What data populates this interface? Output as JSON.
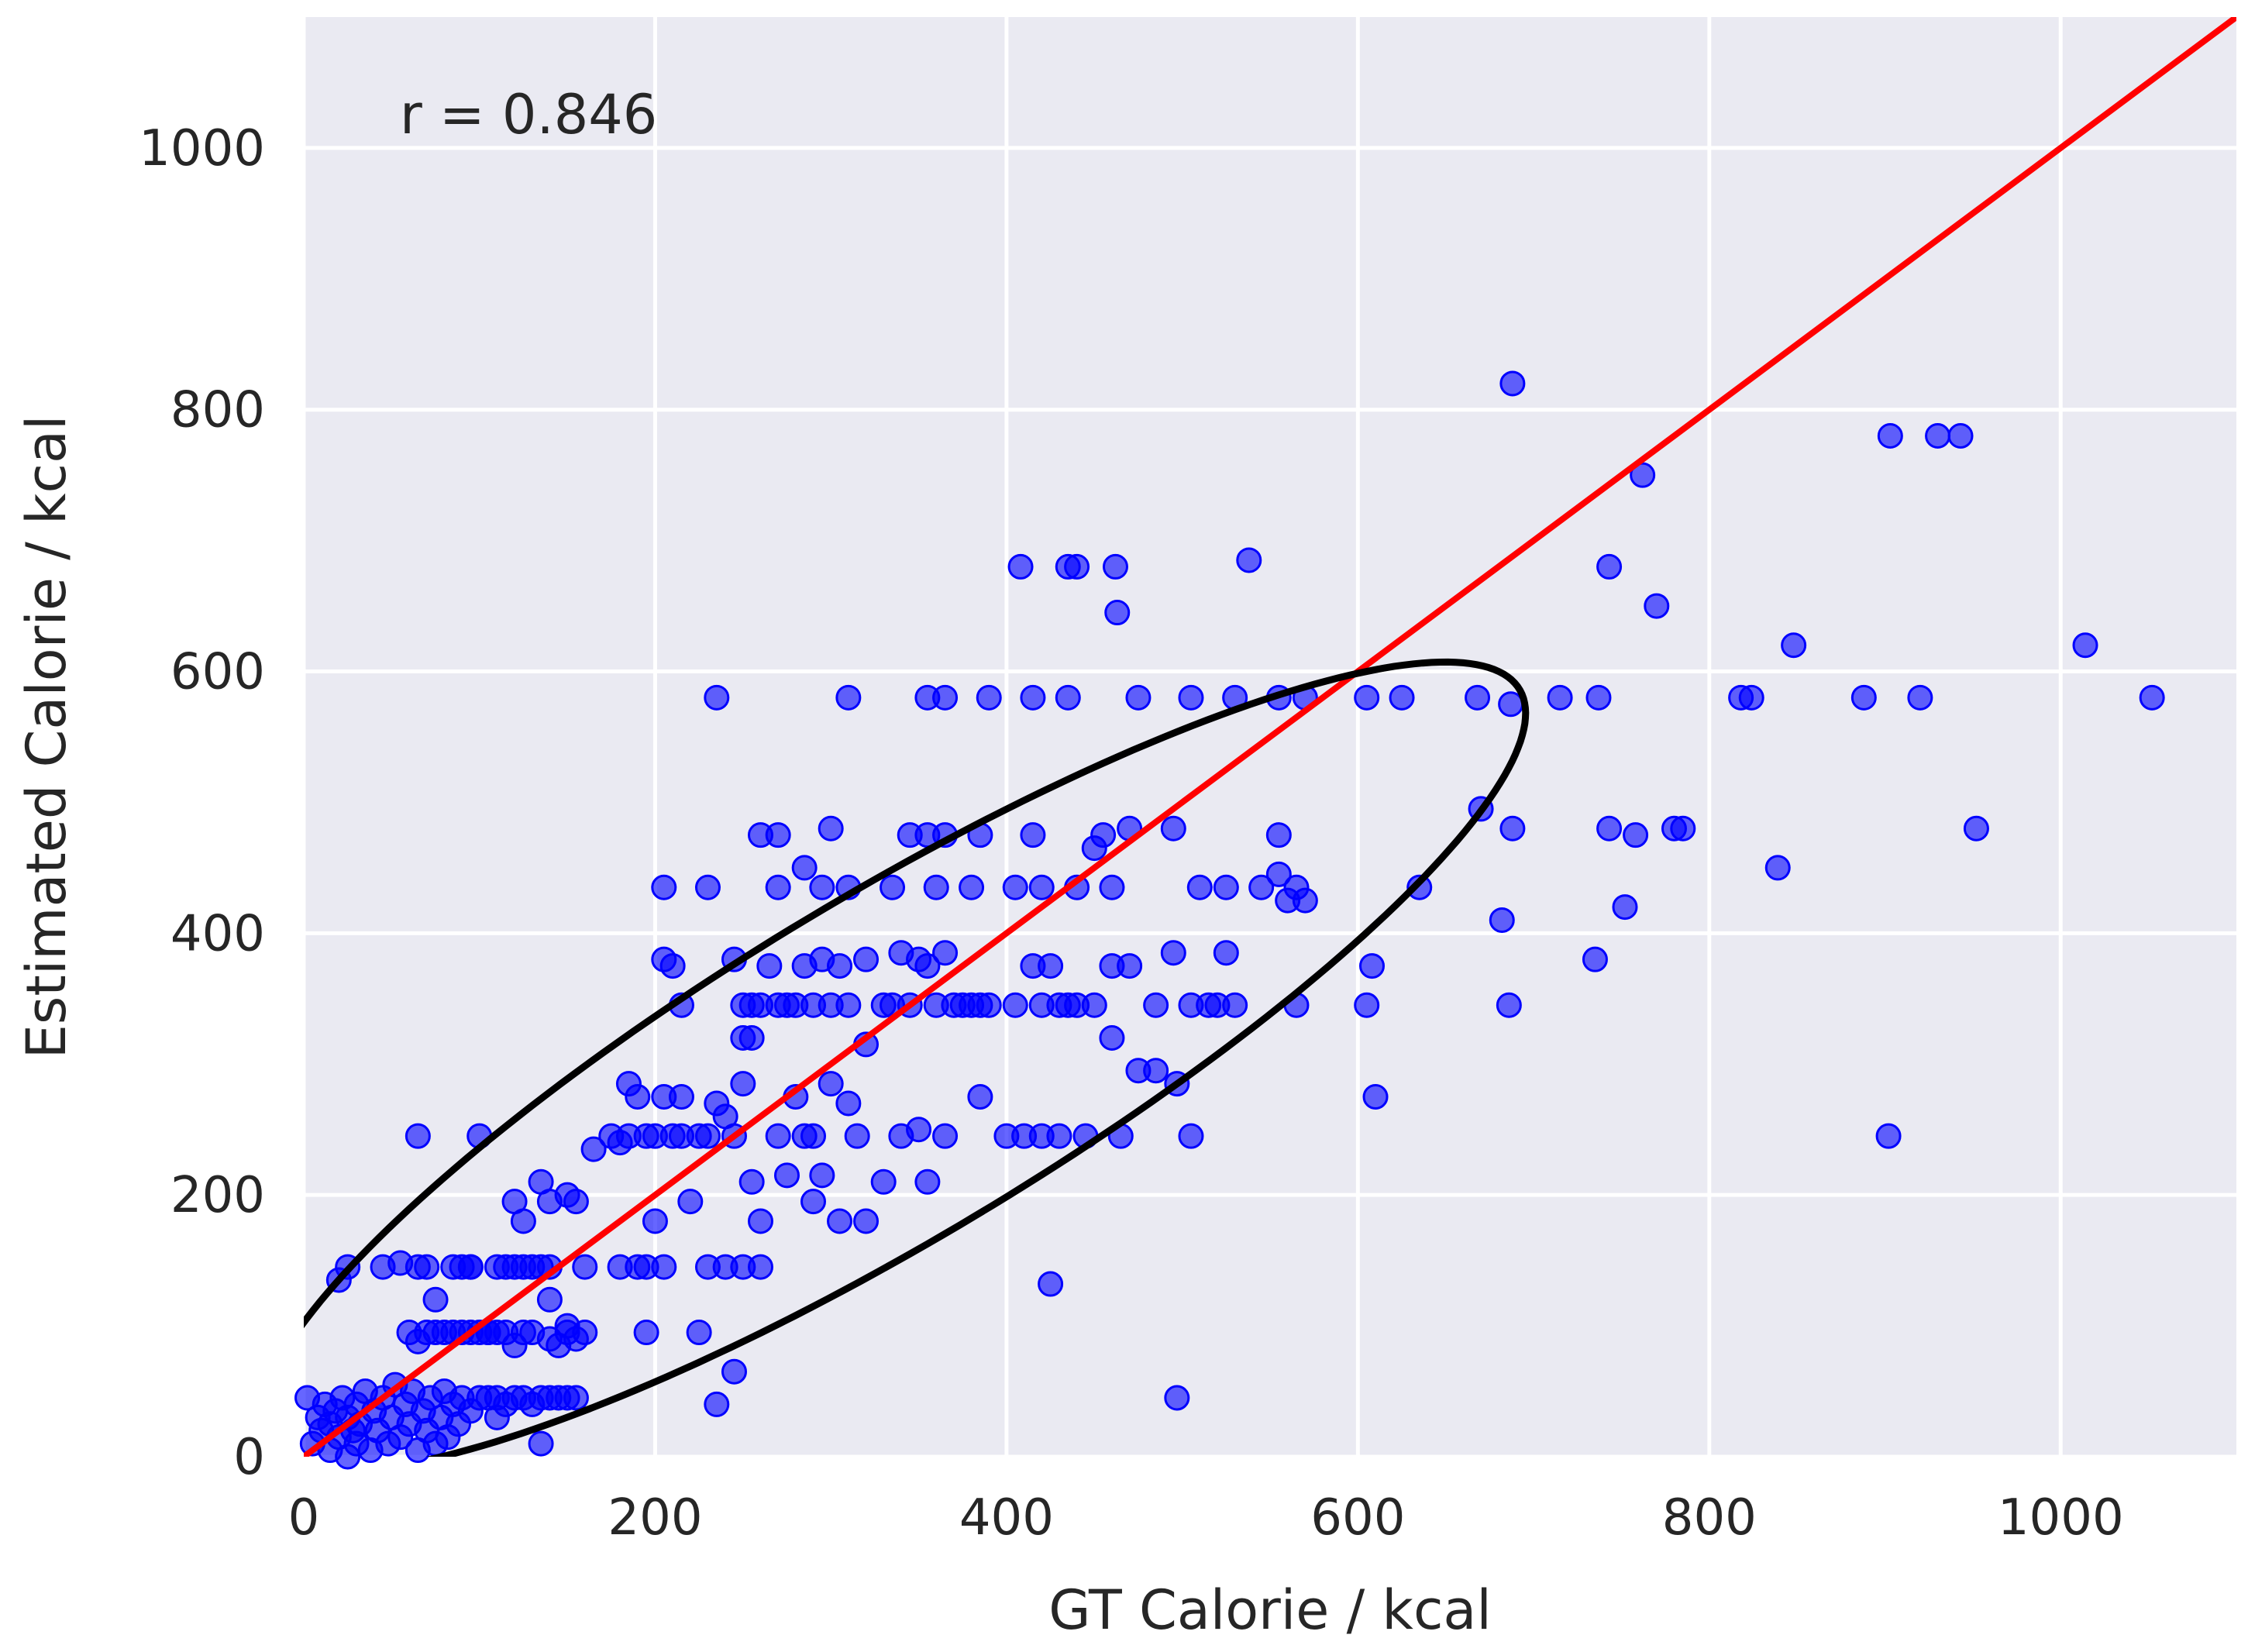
{
  "chart_data": {
    "type": "scatter",
    "title": "",
    "xlabel": "GT Calorie / kcal",
    "ylabel": "Estimated Calorie / kcal",
    "xlim": [
      0,
      1100
    ],
    "ylim": [
      0,
      1100
    ],
    "xticks": [
      0,
      200,
      400,
      600,
      800,
      1000
    ],
    "yticks": [
      0,
      200,
      400,
      600,
      800,
      1000
    ],
    "grid": true,
    "annotation": "r = 0.846",
    "colors": {
      "background": "#eaeaf2",
      "grid": "#ffffff",
      "points": "#0000ff",
      "identity_line": "#ff0000",
      "ellipse": "#000000",
      "text": "#262626"
    },
    "identity_line": {
      "from": [
        0,
        0
      ],
      "to": [
        1100,
        1100
      ]
    },
    "ellipse": {
      "center": [
        335,
        298
      ],
      "semi_major": 460,
      "semi_minor": 118,
      "angle_deg": 40
    },
    "points": [
      [
        2,
        45
      ],
      [
        5,
        10
      ],
      [
        8,
        30
      ],
      [
        10,
        20
      ],
      [
        12,
        40
      ],
      [
        15,
        5
      ],
      [
        15,
        25
      ],
      [
        18,
        35
      ],
      [
        20,
        15
      ],
      [
        22,
        45
      ],
      [
        25,
        0
      ],
      [
        25,
        30
      ],
      [
        28,
        20
      ],
      [
        30,
        10
      ],
      [
        30,
        40
      ],
      [
        32,
        25
      ],
      [
        35,
        50
      ],
      [
        38,
        5
      ],
      [
        40,
        35
      ],
      [
        42,
        20
      ],
      [
        45,
        45
      ],
      [
        48,
        10
      ],
      [
        50,
        30
      ],
      [
        52,
        55
      ],
      [
        55,
        15
      ],
      [
        58,
        40
      ],
      [
        60,
        25
      ],
      [
        62,
        50
      ],
      [
        65,
        5
      ],
      [
        68,
        35
      ],
      [
        70,
        20
      ],
      [
        72,
        45
      ],
      [
        75,
        10
      ],
      [
        78,
        30
      ],
      [
        80,
        50
      ],
      [
        82,
        15
      ],
      [
        85,
        40
      ],
      [
        88,
        25
      ],
      [
        90,
        45
      ],
      [
        95,
        35
      ],
      [
        100,
        45
      ],
      [
        105,
        45
      ],
      [
        110,
        45
      ],
      [
        115,
        40
      ],
      [
        120,
        45
      ],
      [
        125,
        45
      ],
      [
        130,
        40
      ],
      [
        135,
        45
      ],
      [
        140,
        45
      ],
      [
        145,
        45
      ],
      [
        150,
        45
      ],
      [
        155,
        45
      ],
      [
        20,
        135
      ],
      [
        25,
        145
      ],
      [
        45,
        145
      ],
      [
        55,
        148
      ],
      [
        65,
        145
      ],
      [
        70,
        145
      ],
      [
        85,
        145
      ],
      [
        90,
        145
      ],
      [
        95,
        145
      ],
      [
        110,
        145
      ],
      [
        115,
        145
      ],
      [
        120,
        145
      ],
      [
        125,
        145
      ],
      [
        130,
        145
      ],
      [
        135,
        145
      ],
      [
        140,
        145
      ],
      [
        160,
        145
      ],
      [
        180,
        145
      ],
      [
        190,
        145
      ],
      [
        195,
        145
      ],
      [
        205,
        145
      ],
      [
        230,
        145
      ],
      [
        240,
        145
      ],
      [
        250,
        145
      ],
      [
        260,
        145
      ],
      [
        60,
        95
      ],
      [
        65,
        88
      ],
      [
        70,
        95
      ],
      [
        75,
        95
      ],
      [
        80,
        95
      ],
      [
        85,
        95
      ],
      [
        90,
        95
      ],
      [
        95,
        95
      ],
      [
        100,
        95
      ],
      [
        105,
        95
      ],
      [
        110,
        95
      ],
      [
        115,
        95
      ],
      [
        120,
        85
      ],
      [
        125,
        95
      ],
      [
        130,
        95
      ],
      [
        140,
        90
      ],
      [
        145,
        85
      ],
      [
        150,
        95
      ],
      [
        155,
        90
      ],
      [
        160,
        95
      ],
      [
        195,
        95
      ],
      [
        225,
        95
      ],
      [
        75,
        120
      ],
      [
        120,
        195
      ],
      [
        125,
        180
      ],
      [
        135,
        210
      ],
      [
        140,
        195
      ],
      [
        150,
        200
      ],
      [
        155,
        195
      ],
      [
        165,
        235
      ],
      [
        175,
        245
      ],
      [
        180,
        240
      ],
      [
        185,
        285
      ],
      [
        190,
        275
      ],
      [
        195,
        245
      ],
      [
        200,
        180
      ],
      [
        200,
        245
      ],
      [
        205,
        275
      ],
      [
        210,
        245
      ],
      [
        215,
        245
      ],
      [
        220,
        195
      ],
      [
        225,
        245
      ],
      [
        230,
        245
      ],
      [
        235,
        270
      ],
      [
        240,
        260
      ],
      [
        245,
        245
      ],
      [
        250,
        285
      ],
      [
        255,
        210
      ],
      [
        260,
        180
      ],
      [
        270,
        245
      ],
      [
        275,
        215
      ],
      [
        280,
        275
      ],
      [
        285,
        245
      ],
      [
        290,
        245
      ],
      [
        295,
        215
      ],
      [
        300,
        285
      ],
      [
        305,
        180
      ],
      [
        310,
        270
      ],
      [
        315,
        245
      ],
      [
        320,
        180
      ],
      [
        330,
        210
      ],
      [
        340,
        245
      ],
      [
        350,
        250
      ],
      [
        355,
        210
      ],
      [
        365,
        245
      ],
      [
        385,
        275
      ],
      [
        205,
        380
      ],
      [
        210,
        375
      ],
      [
        215,
        345
      ],
      [
        245,
        380
      ],
      [
        250,
        345
      ],
      [
        255,
        345
      ],
      [
        260,
        345
      ],
      [
        265,
        375
      ],
      [
        270,
        345
      ],
      [
        275,
        345
      ],
      [
        280,
        345
      ],
      [
        285,
        375
      ],
      [
        290,
        345
      ],
      [
        295,
        380
      ],
      [
        300,
        345
      ],
      [
        305,
        375
      ],
      [
        310,
        345
      ],
      [
        320,
        380
      ],
      [
        330,
        345
      ],
      [
        335,
        345
      ],
      [
        340,
        385
      ],
      [
        345,
        345
      ],
      [
        350,
        380
      ],
      [
        355,
        375
      ],
      [
        360,
        345
      ],
      [
        365,
        385
      ],
      [
        370,
        345
      ],
      [
        375,
        345
      ],
      [
        380,
        345
      ],
      [
        385,
        345
      ],
      [
        390,
        345
      ],
      [
        405,
        345
      ],
      [
        415,
        375
      ],
      [
        420,
        345
      ],
      [
        425,
        375
      ],
      [
        430,
        345
      ],
      [
        435,
        345
      ],
      [
        440,
        345
      ],
      [
        450,
        345
      ],
      [
        460,
        375
      ],
      [
        470,
        375
      ],
      [
        485,
        345
      ],
      [
        495,
        385
      ],
      [
        505,
        345
      ],
      [
        515,
        345
      ],
      [
        525,
        385
      ],
      [
        530,
        345
      ],
      [
        250,
        320
      ],
      [
        255,
        320
      ],
      [
        320,
        315
      ],
      [
        460,
        320
      ],
      [
        475,
        295
      ],
      [
        485,
        295
      ],
      [
        205,
        435
      ],
      [
        230,
        435
      ],
      [
        270,
        435
      ],
      [
        285,
        450
      ],
      [
        295,
        435
      ],
      [
        310,
        435
      ],
      [
        335,
        435
      ],
      [
        360,
        435
      ],
      [
        380,
        435
      ],
      [
        405,
        435
      ],
      [
        420,
        435
      ],
      [
        440,
        435
      ],
      [
        450,
        465
      ],
      [
        460,
        435
      ],
      [
        510,
        435
      ],
      [
        525,
        435
      ],
      [
        545,
        435
      ],
      [
        555,
        445
      ],
      [
        560,
        425
      ],
      [
        565,
        435
      ],
      [
        570,
        425
      ],
      [
        260,
        475
      ],
      [
        270,
        475
      ],
      [
        300,
        480
      ],
      [
        345,
        475
      ],
      [
        355,
        475
      ],
      [
        365,
        475
      ],
      [
        385,
        475
      ],
      [
        415,
        475
      ],
      [
        455,
        475
      ],
      [
        470,
        480
      ],
      [
        495,
        480
      ],
      [
        555,
        475
      ],
      [
        235,
        580
      ],
      [
        310,
        580
      ],
      [
        355,
        580
      ],
      [
        365,
        580
      ],
      [
        390,
        580
      ],
      [
        415,
        580
      ],
      [
        435,
        580
      ],
      [
        475,
        580
      ],
      [
        505,
        580
      ],
      [
        530,
        580
      ],
      [
        555,
        580
      ],
      [
        570,
        580
      ],
      [
        605,
        580
      ],
      [
        625,
        580
      ],
      [
        668,
        580
      ],
      [
        687,
        575
      ],
      [
        715,
        580
      ],
      [
        737,
        580
      ],
      [
        818,
        580
      ],
      [
        824,
        580
      ],
      [
        888,
        580
      ],
      [
        920,
        580
      ],
      [
        1052,
        580
      ],
      [
        408,
        680
      ],
      [
        435,
        680
      ],
      [
        440,
        680
      ],
      [
        462,
        680
      ],
      [
        538,
        685
      ],
      [
        463,
        645
      ],
      [
        743,
        680
      ],
      [
        762,
        750
      ],
      [
        770,
        650
      ],
      [
        848,
        620
      ],
      [
        1014,
        620
      ],
      [
        903,
        780
      ],
      [
        930,
        780
      ],
      [
        943,
        780
      ],
      [
        688,
        820
      ],
      [
        670,
        495
      ],
      [
        688,
        480
      ],
      [
        743,
        480
      ],
      [
        758,
        475
      ],
      [
        780,
        480
      ],
      [
        785,
        480
      ],
      [
        839,
        450
      ],
      [
        952,
        480
      ],
      [
        752,
        420
      ],
      [
        682,
        410
      ],
      [
        635,
        435
      ],
      [
        608,
        375
      ],
      [
        605,
        345
      ],
      [
        735,
        380
      ],
      [
        686,
        345
      ],
      [
        610,
        275
      ],
      [
        902,
        245
      ],
      [
        410,
        245
      ],
      [
        420,
        245
      ],
      [
        430,
        245
      ],
      [
        445,
        245
      ],
      [
        465,
        245
      ],
      [
        505,
        245
      ],
      [
        497,
        285
      ],
      [
        425,
        132
      ],
      [
        245,
        65
      ],
      [
        235,
        40
      ],
      [
        497,
        45
      ],
      [
        565,
        345
      ],
      [
        520,
        345
      ],
      [
        400,
        245
      ],
      [
        140,
        120
      ],
      [
        135,
        10
      ],
      [
        110,
        30
      ],
      [
        100,
        245
      ],
      [
        65,
        245
      ],
      [
        105,
        95
      ],
      [
        95,
        145
      ],
      [
        150,
        100
      ],
      [
        185,
        245
      ],
      [
        215,
        275
      ],
      [
        290,
        195
      ]
    ]
  }
}
